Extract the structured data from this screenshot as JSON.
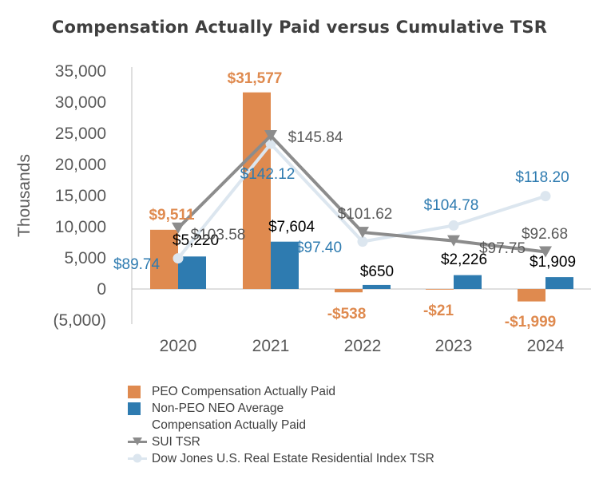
{
  "title": "Compensation Actually Paid versus Cumulative TSR",
  "chart_data": {
    "type": "bar",
    "title": "Compensation Actually Paid versus Cumulative TSR",
    "ylabel": "Thousands",
    "ylim": [
      -5000,
      35000
    ],
    "yticks": [
      35000,
      30000,
      25000,
      20000,
      15000,
      10000,
      5000,
      0,
      -5000
    ],
    "ytick_labels": [
      "35,000",
      "30,000",
      "25,000",
      "20,000",
      "15,000",
      "10,000",
      "5,000",
      "0",
      "(5,000)"
    ],
    "categories": [
      "2020",
      "2021",
      "2022",
      "2023",
      "2024"
    ],
    "bar_series": [
      {
        "name": "PEO Compensation Actually Paid",
        "color": "#df8a4f",
        "values": [
          9511,
          31577,
          -538,
          -21,
          -1999
        ],
        "labels": [
          "$9,511",
          "$31,577",
          "-$538",
          "-$21",
          "-$1,999"
        ]
      },
      {
        "name": "Non-PEO NEO Average Compensation Actually Paid",
        "color": "#2e7bb0",
        "values": [
          5220,
          7604,
          650,
          2226,
          1909
        ],
        "labels": [
          "$5,220",
          "$7,604",
          "$650",
          "$2,226",
          "$1,909"
        ]
      }
    ],
    "line_series": [
      {
        "name": "SUI TSR",
        "color": "#8c8c8c",
        "marker": "triangle-down",
        "values": [
          103.58,
          145.84,
          101.62,
          97.75,
          92.68
        ],
        "labels": [
          "$103.58",
          "$145.84",
          "$101.62",
          "$97.75",
          "$92.68"
        ]
      },
      {
        "name": "Dow Jones U.S. Real Estate Residential Index TSR",
        "color": "#dce6ef",
        "marker": "circle",
        "values": [
          89.74,
          142.12,
          97.4,
          104.78,
          118.2
        ],
        "labels": [
          "$89.74",
          "$142.12",
          "$97.40",
          "$104.78",
          "$118.20"
        ]
      }
    ],
    "legend": {
      "position": "bottom",
      "entries": [
        "PEO Compensation Actually Paid",
        "Non-PEO NEO Average",
        "Compensation Actually Paid",
        "SUI TSR",
        "Dow Jones U.S. Real Estate Residential Index TSR"
      ]
    },
    "grid": false
  }
}
